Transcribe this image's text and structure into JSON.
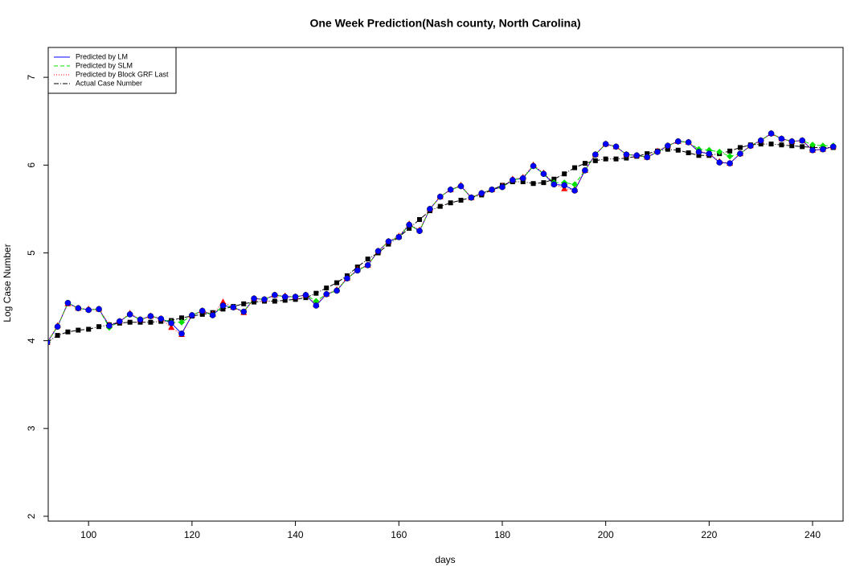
{
  "chart_data": {
    "type": "line",
    "title": "One Week Prediction(Nash county, North Carolina)",
    "x_label": "days",
    "y_label": "Log Case Number",
    "xlim": [
      92.2,
      245.9
    ],
    "ylim": [
      1.945,
      7.34
    ],
    "xticks": [
      100,
      120,
      140,
      160,
      180,
      200,
      220,
      240
    ],
    "yticks": [
      2,
      3,
      4,
      5,
      6,
      7
    ],
    "legend": "top-left",
    "x": [
      92,
      94,
      96,
      98,
      100,
      102,
      104,
      106,
      108,
      110,
      112,
      114,
      116,
      118,
      120,
      122,
      124,
      126,
      128,
      130,
      132,
      134,
      136,
      138,
      140,
      142,
      144,
      146,
      148,
      150,
      152,
      154,
      156,
      158,
      160,
      162,
      164,
      166,
      168,
      170,
      172,
      174,
      176,
      178,
      180,
      182,
      184,
      186,
      188,
      190,
      192,
      194,
      196,
      198,
      200,
      202,
      204,
      206,
      208,
      210,
      212,
      214,
      216,
      218,
      220,
      222,
      224,
      226,
      228,
      230,
      232,
      234,
      236,
      238,
      240,
      242,
      244
    ],
    "series": [
      {
        "name": "Predicted by LM",
        "color": "#0000ff",
        "dash": "solid",
        "marker": "circle",
        "values": [
          3.98,
          4.16,
          4.43,
          4.37,
          4.35,
          4.36,
          4.17,
          4.22,
          4.3,
          4.24,
          4.28,
          4.25,
          4.2,
          4.08,
          4.29,
          4.34,
          4.29,
          4.4,
          4.38,
          4.33,
          4.48,
          4.47,
          4.52,
          4.5,
          4.5,
          4.52,
          4.4,
          4.53,
          4.57,
          4.71,
          4.8,
          4.86,
          5.02,
          5.13,
          5.18,
          5.32,
          5.25,
          5.5,
          5.64,
          5.72,
          5.76,
          5.63,
          5.68,
          5.72,
          5.75,
          5.83,
          5.85,
          5.99,
          5.9,
          5.78,
          5.77,
          5.71,
          5.94,
          6.12,
          6.24,
          6.21,
          6.12,
          6.11,
          6.09,
          6.15,
          6.22,
          6.27,
          6.26,
          6.15,
          6.13,
          6.03,
          6.02,
          6.13,
          6.22,
          6.28,
          6.36,
          6.3,
          6.27,
          6.28,
          6.17,
          6.18,
          6.21
        ]
      },
      {
        "name": "Predicted by SLM",
        "color": "#00e000",
        "dash": "dashed",
        "marker": "diamond",
        "values": [
          3.98,
          4.16,
          4.43,
          4.37,
          4.35,
          4.36,
          4.15,
          4.22,
          4.3,
          4.24,
          4.28,
          4.25,
          4.21,
          4.21,
          4.29,
          4.34,
          4.29,
          4.4,
          4.38,
          4.33,
          4.48,
          4.47,
          4.52,
          4.5,
          4.5,
          4.52,
          4.45,
          4.53,
          4.57,
          4.71,
          4.8,
          4.86,
          5.02,
          5.13,
          5.18,
          5.32,
          5.25,
          5.5,
          5.64,
          5.72,
          5.76,
          5.63,
          5.68,
          5.72,
          5.75,
          5.83,
          5.85,
          5.99,
          5.9,
          5.8,
          5.8,
          5.78,
          5.94,
          6.12,
          6.24,
          6.21,
          6.12,
          6.11,
          6.09,
          6.15,
          6.22,
          6.27,
          6.26,
          6.18,
          6.17,
          6.15,
          6.1,
          6.13,
          6.22,
          6.28,
          6.36,
          6.3,
          6.27,
          6.28,
          6.23,
          6.22,
          6.22
        ]
      },
      {
        "name": "Predicted by Block GRF Last",
        "color": "#ff0000",
        "dash": "dotted",
        "marker": "triangle",
        "values": [
          3.98,
          4.17,
          4.42,
          4.37,
          4.36,
          4.36,
          4.18,
          4.22,
          4.31,
          4.24,
          4.28,
          4.25,
          4.15,
          4.07,
          4.29,
          4.34,
          4.3,
          4.44,
          4.38,
          4.32,
          4.48,
          4.47,
          4.52,
          4.51,
          4.5,
          4.52,
          4.41,
          4.53,
          4.58,
          4.71,
          4.81,
          4.86,
          5.02,
          5.13,
          5.19,
          5.33,
          5.26,
          5.5,
          5.64,
          5.72,
          5.77,
          5.63,
          5.68,
          5.72,
          5.76,
          5.84,
          5.86,
          6.0,
          5.91,
          5.79,
          5.73,
          5.72,
          5.94,
          6.12,
          6.24,
          6.21,
          6.12,
          6.11,
          6.09,
          6.16,
          6.22,
          6.27,
          6.26,
          6.16,
          6.13,
          6.04,
          6.02,
          6.13,
          6.22,
          6.28,
          6.36,
          6.3,
          6.27,
          6.28,
          6.17,
          6.18,
          6.21
        ]
      },
      {
        "name": "Actual Case Number",
        "color": "#000000",
        "dash": "dashdot",
        "marker": "square",
        "values": [
          3.98,
          4.06,
          4.1,
          4.12,
          4.13,
          4.16,
          4.18,
          4.2,
          4.21,
          4.21,
          4.21,
          4.22,
          4.23,
          4.26,
          4.28,
          4.3,
          4.32,
          4.36,
          4.39,
          4.42,
          4.44,
          4.45,
          4.45,
          4.46,
          4.47,
          4.49,
          4.54,
          4.6,
          4.66,
          4.74,
          4.84,
          4.93,
          5.0,
          5.1,
          5.18,
          5.28,
          5.38,
          5.48,
          5.53,
          5.57,
          5.6,
          5.63,
          5.66,
          5.72,
          5.77,
          5.81,
          5.81,
          5.79,
          5.8,
          5.84,
          5.9,
          5.97,
          6.02,
          6.05,
          6.07,
          6.07,
          6.08,
          6.1,
          6.13,
          6.16,
          6.18,
          6.17,
          6.14,
          6.11,
          6.11,
          6.13,
          6.16,
          6.2,
          6.23,
          6.24,
          6.24,
          6.23,
          6.22,
          6.21,
          6.2,
          6.2,
          6.2
        ]
      }
    ]
  }
}
